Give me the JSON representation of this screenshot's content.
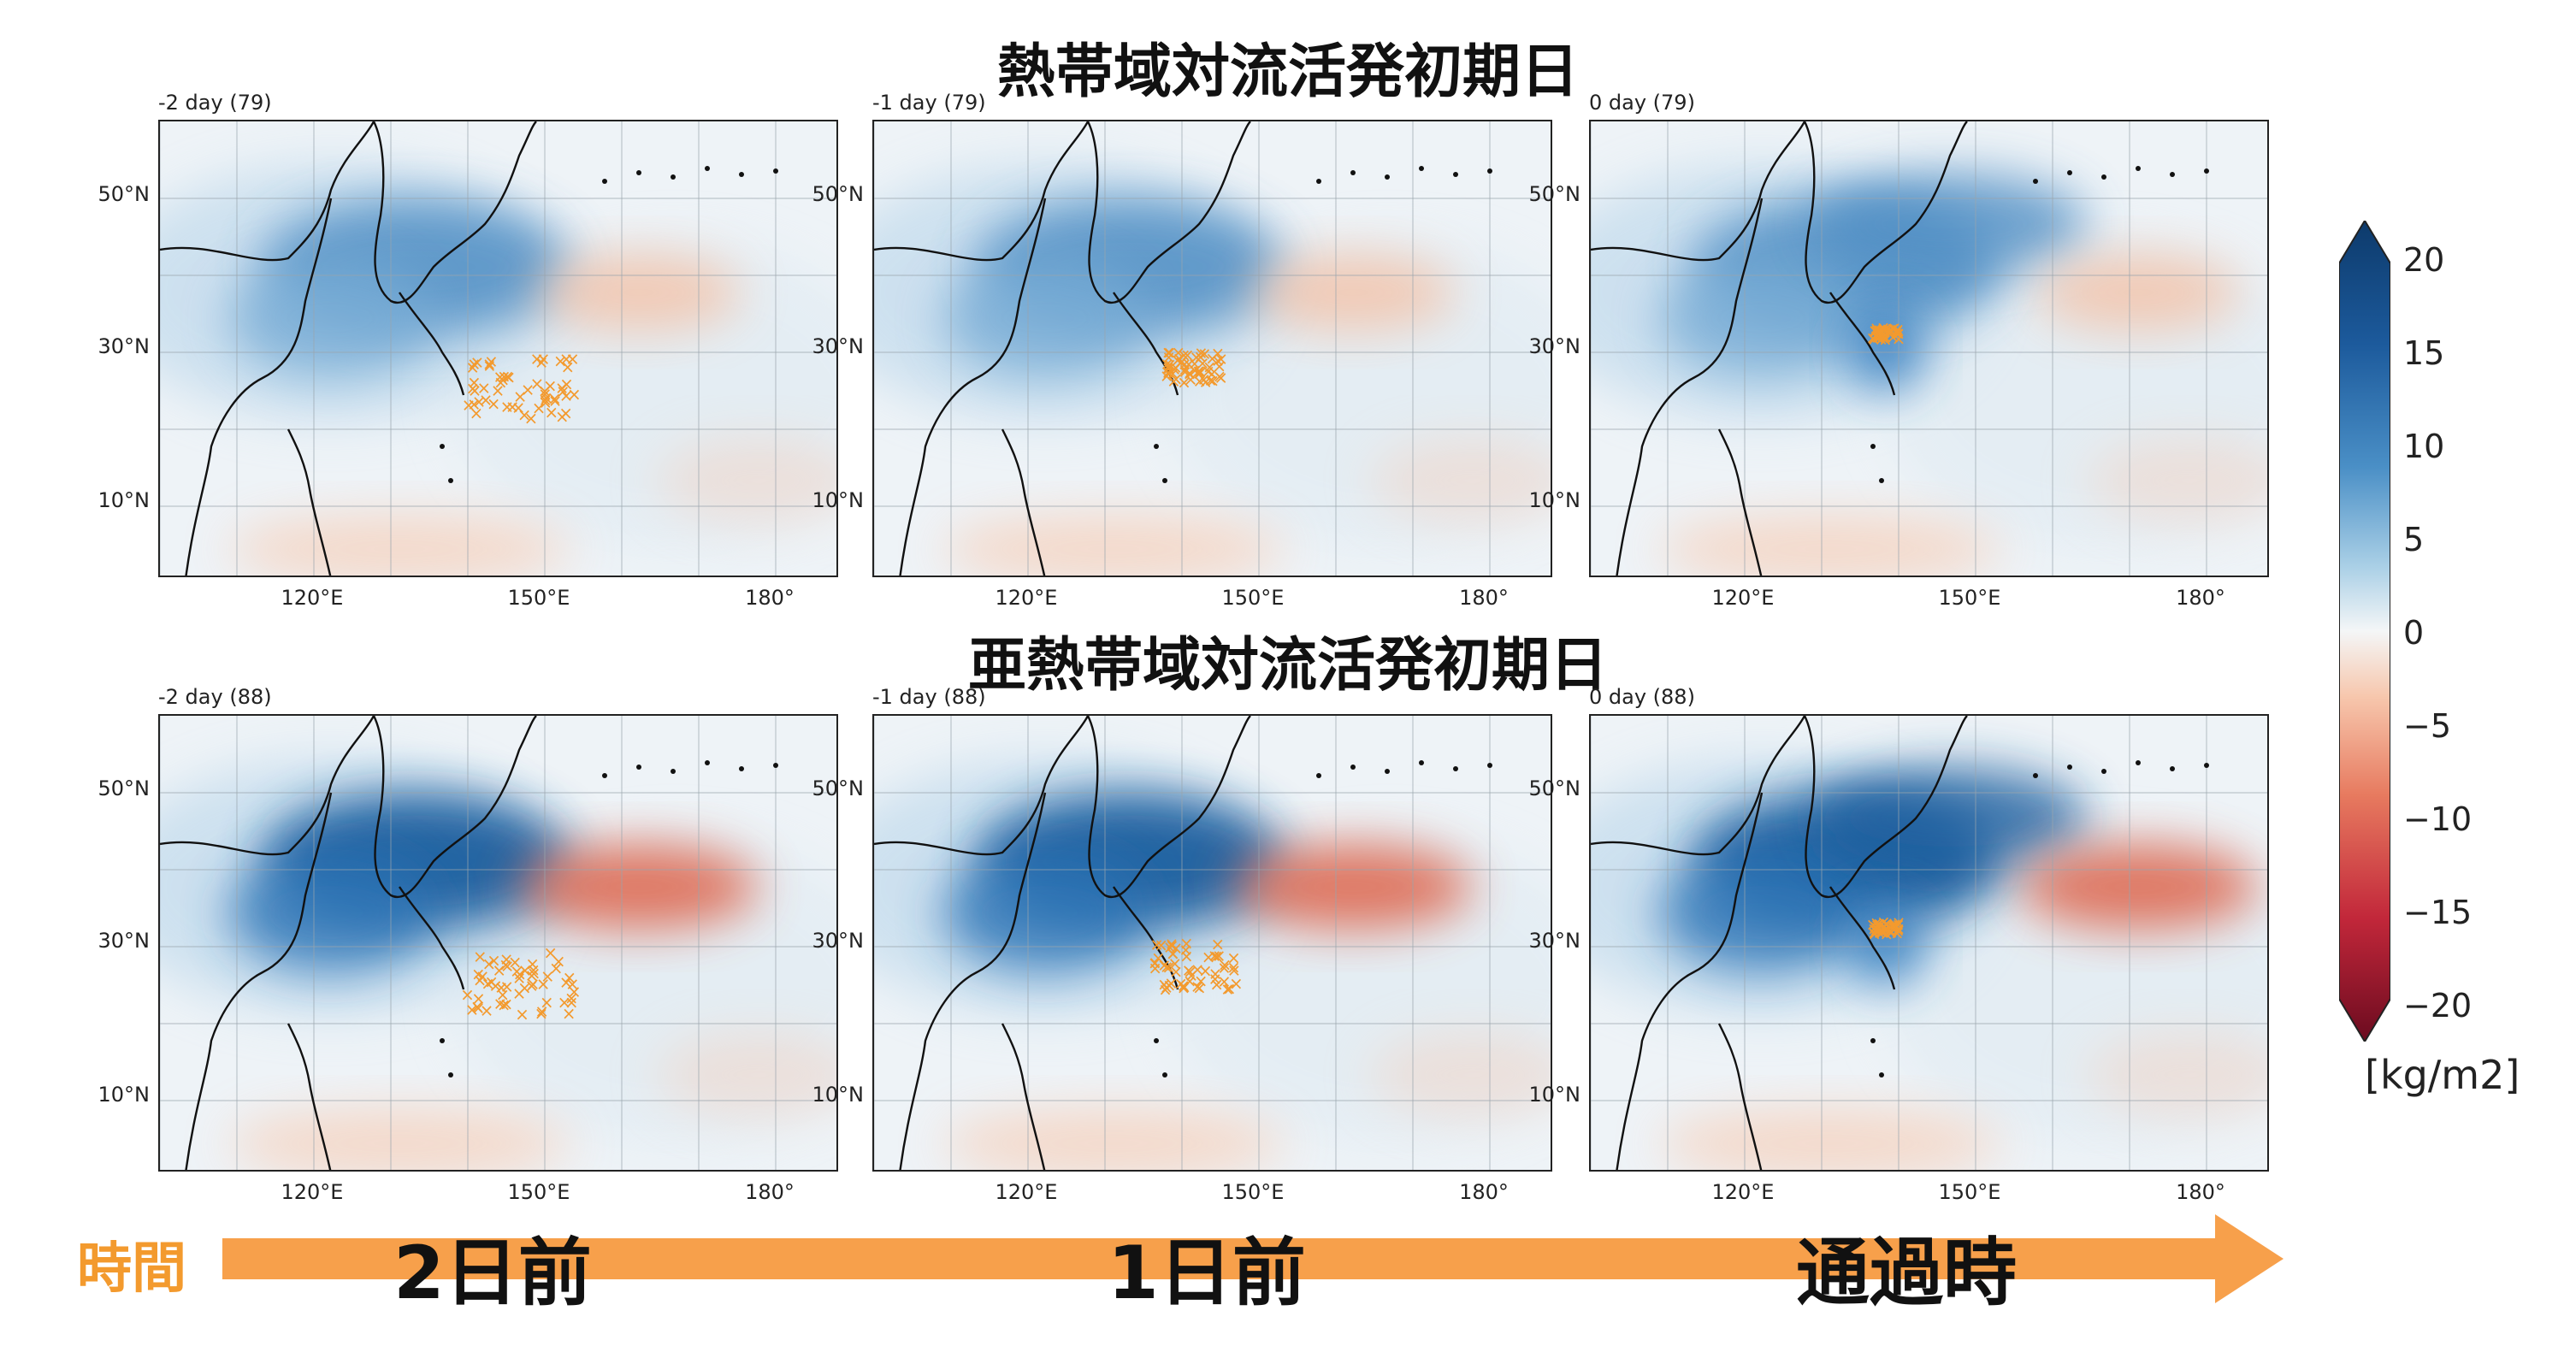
{
  "titles": {
    "top": "熱帯域対流活発初期日",
    "bottom": "亜熱帯域対流活発初期日"
  },
  "panels": [
    {
      "label": "-2 day (79)",
      "row": "top",
      "col": 0
    },
    {
      "label": "-1 day (79)",
      "row": "top",
      "col": 1
    },
    {
      "label": "0 day (79)",
      "row": "top",
      "col": 2
    },
    {
      "label": "-2 day (88)",
      "row": "bottom",
      "col": 0
    },
    {
      "label": "-1 day (88)",
      "row": "bottom",
      "col": 1
    },
    {
      "label": "0 day (88)",
      "row": "bottom",
      "col": 2
    }
  ],
  "axes": {
    "lat_labels": [
      "50°N",
      "30°N",
      "10°N"
    ],
    "lon_labels": [
      "120°E",
      "150°E",
      "180°"
    ]
  },
  "colorbar": {
    "ticks": [
      "20",
      "15",
      "10",
      "5",
      "0",
      "−5",
      "−10",
      "−15",
      "−20"
    ],
    "unit": "[kg/m2]",
    "colors": {
      "max": "#0d3a6b",
      "high": "#2a6fb1",
      "mid_high": "#8cbcdc",
      "zero": "#f4f6f7",
      "mid_low": "#f2b79a",
      "low": "#d5503f",
      "min": "#6b0b1f"
    }
  },
  "timeline": {
    "label": "時間",
    "days": [
      "2日前",
      "1日前",
      "通過時"
    ],
    "arrow_color": "#f7a04b"
  },
  "marker_color": "#f39a2e"
}
